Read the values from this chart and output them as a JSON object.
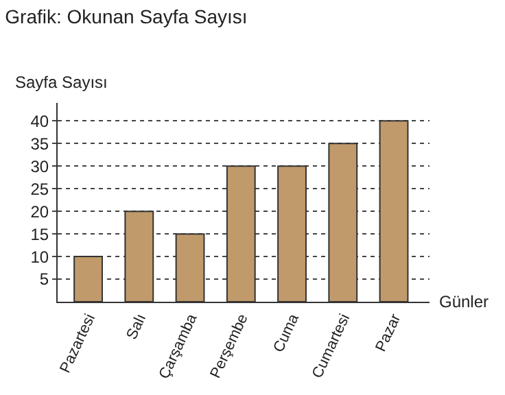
{
  "chart_data": {
    "type": "bar",
    "title": "Grafik: Okunan Sayfa Sayısı",
    "xlabel": "Günler",
    "ylabel": "Sayfa Sayısı",
    "categories": [
      "Pazartesi",
      "Salı",
      "Çarşamba",
      "Perşembe",
      "Cuma",
      "Cumartesi",
      "Pazar"
    ],
    "values": [
      10,
      20,
      15,
      30,
      30,
      35,
      40
    ],
    "color": "#c19a6b",
    "ylim": [
      0,
      44
    ],
    "yticks": [
      5,
      10,
      15,
      20,
      25,
      30,
      35,
      40
    ],
    "grid": "y"
  }
}
